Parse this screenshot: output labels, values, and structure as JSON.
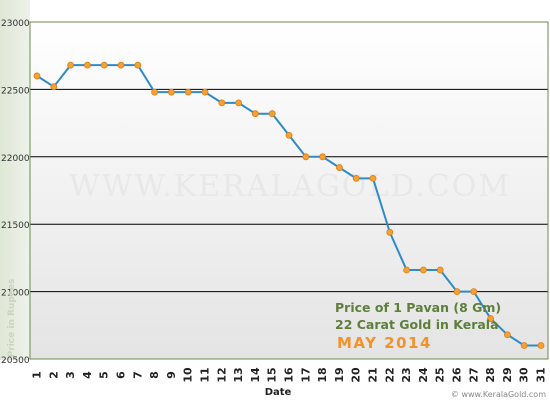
{
  "chart_data": {
    "type": "line",
    "title_lines": [
      "Price of 1 Pavan (8 Gm)",
      "22 Carat Gold in Kerala"
    ],
    "period": "MAY 2014",
    "xlabel": "Date",
    "ylabel": "Price in Rupees",
    "ylim": [
      20500,
      23000
    ],
    "y_ticks": [
      20500,
      21000,
      21500,
      22000,
      22500,
      23000
    ],
    "grid": true,
    "watermark": "WWW.KERALAGOLD.COM",
    "footer": "© www.KeralaGold.com",
    "categories": [
      "1",
      "2",
      "3",
      "4",
      "5",
      "6",
      "7",
      "8",
      "9",
      "10",
      "11",
      "12",
      "13",
      "14",
      "15",
      "16",
      "17",
      "18",
      "19",
      "20",
      "21",
      "22",
      "23",
      "24",
      "25",
      "26",
      "27",
      "28",
      "29",
      "30",
      "31"
    ],
    "series": [
      {
        "values": [
          22600,
          22520,
          22680,
          22680,
          22680,
          22680,
          22680,
          22480,
          22480,
          22480,
          22480,
          22400,
          22400,
          22320,
          22320,
          22160,
          22000,
          22000,
          21920,
          21840,
          21840,
          21440,
          21160,
          21160,
          21160,
          21000,
          21000,
          20800,
          20680,
          20600,
          20600
        ]
      }
    ],
    "colors": {
      "line": "#2e8bc9",
      "marker_fill": "#f5a234",
      "marker_stroke": "#e07a10",
      "axis_text": "#333333",
      "caption_text": "#5e7f3c",
      "period_text": "#f2922a",
      "plot_border": "#6a8a4a",
      "grid": "#000000"
    }
  }
}
